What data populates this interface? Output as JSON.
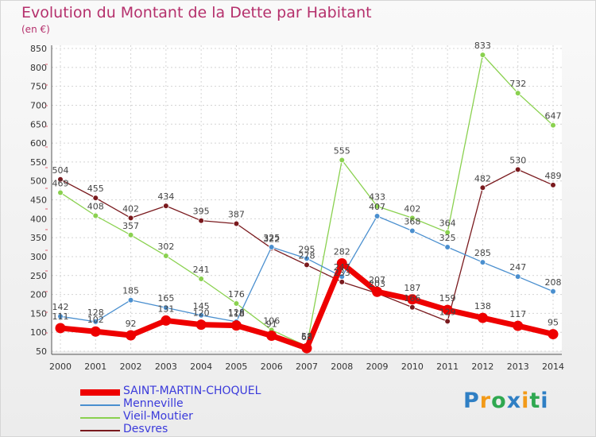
{
  "title": "Evolution du Montant de la Dette par Habitant",
  "subtitle": "(en €)",
  "logo": {
    "text": "Proxiti",
    "colors": [
      "#2f7fc4",
      "#f29a18",
      "#2fa850"
    ]
  },
  "chart_data": {
    "type": "line",
    "x": [
      "2000",
      "2001",
      "2002",
      "2003",
      "2004",
      "2005",
      "2006",
      "2007",
      "2008",
      "2009",
      "2010",
      "2011",
      "2012",
      "2013",
      "2014"
    ],
    "ylim": [
      50,
      850
    ],
    "yticks": [
      50,
      100,
      150,
      200,
      250,
      300,
      350,
      400,
      450,
      500,
      550,
      600,
      650,
      700,
      750,
      800,
      850
    ],
    "grid": true,
    "legend_position": "bottom-left",
    "series": [
      {
        "name": "Desvres",
        "color": "#7a1a1e",
        "values": [
          504,
          455,
          402,
          434,
          395,
          387,
          322,
          278,
          233,
          203,
          166,
          129,
          482,
          530,
          489
        ],
        "labels": [
          "504",
          "455",
          "402",
          "434",
          "395",
          "387",
          "322",
          "278",
          "233",
          "203",
          "166",
          "129",
          "482",
          "530",
          "489"
        ]
      },
      {
        "name": "Vieil-Moutier",
        "color": "#8ad14f",
        "values": [
          469,
          408,
          357,
          302,
          241,
          176,
          106,
          63,
          555,
          433,
          402,
          364,
          833,
          732,
          647
        ],
        "labels": [
          "469",
          "408",
          "357",
          "302",
          "241",
          "176",
          "106",
          "63",
          "555",
          "433",
          "402",
          "364",
          "833",
          "732",
          "647"
        ]
      },
      {
        "name": "Menneville",
        "color": "#4a8fcf",
        "values": [
          142,
          128,
          185,
          165,
          145,
          128,
          325,
          295,
          247,
          407,
          368,
          325,
          285,
          247,
          208
        ],
        "labels": [
          "142",
          "128",
          "185",
          "165",
          "145",
          "128",
          "325",
          "295",
          "247",
          "407",
          "368",
          "325",
          "285",
          "247",
          "208"
        ]
      },
      {
        "name": "SAINT-MARTIN-CHOQUEL",
        "color": "#ee0000",
        "values": [
          111,
          102,
          92,
          131,
          120,
          118,
          91,
          58,
          282,
          207,
          187,
          159,
          138,
          117,
          95
        ],
        "labels": [
          "111",
          "102",
          "92",
          "131",
          "120",
          "118",
          "91",
          "58",
          "282",
          "207",
          "187",
          "159",
          "138",
          "117",
          "95"
        ]
      }
    ],
    "legend": [
      "SAINT-MARTIN-CHOQUEL",
      "Menneville",
      "Vieil-Moutier",
      "Desvres"
    ]
  }
}
